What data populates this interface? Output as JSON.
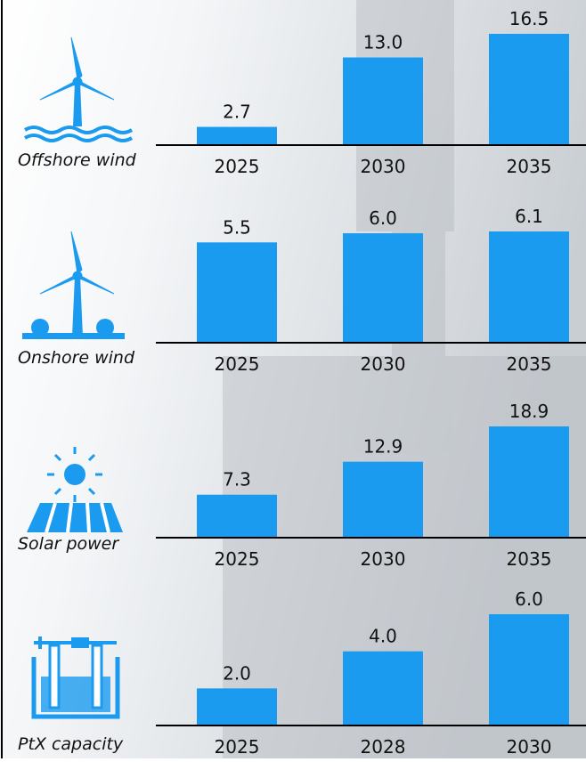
{
  "chart_data": [
    {
      "type": "bar",
      "title": "Offshore wind",
      "categories": [
        "2025",
        "2030",
        "2035"
      ],
      "values": [
        2.7,
        13.0,
        16.5
      ],
      "value_labels": [
        "2.7",
        "13.0",
        "16.5"
      ],
      "color": "#1a9bef"
    },
    {
      "type": "bar",
      "title": "Onshore wind",
      "categories": [
        "2025",
        "2030",
        "2035"
      ],
      "values": [
        5.5,
        6.0,
        6.1
      ],
      "value_labels": [
        "5.5",
        "6.0",
        "6.1"
      ],
      "color": "#1a9bef"
    },
    {
      "type": "bar",
      "title": "Solar power",
      "categories": [
        "2025",
        "2030",
        "2035"
      ],
      "values": [
        7.3,
        12.9,
        18.9
      ],
      "value_labels": [
        "7.3",
        "12.9",
        "18.9"
      ],
      "color": "#1a9bef"
    },
    {
      "type": "bar",
      "title": "PtX capacity",
      "categories": [
        "2025",
        "2028",
        "2030"
      ],
      "values": [
        2.0,
        4.0,
        6.0
      ],
      "value_labels": [
        "2.0",
        "4.0",
        "6.0"
      ],
      "color": "#1a9bef"
    }
  ]
}
